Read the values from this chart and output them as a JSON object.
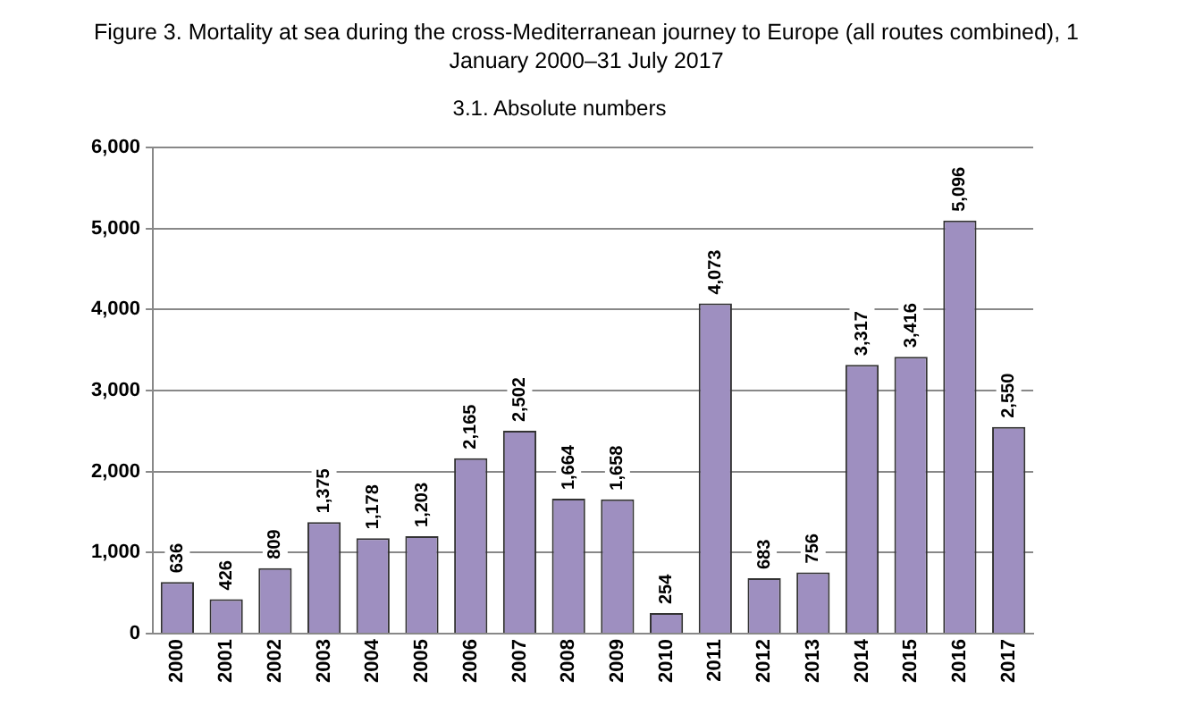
{
  "chart_data": {
    "type": "bar",
    "title": "Figure 3. Mortality at sea during the cross-Mediterranean journey to Europe (all routes combined), 1 January 2000–31 July 2017",
    "subtitle": "3.1. Absolute numbers",
    "categories": [
      "2000",
      "2001",
      "2002",
      "2003",
      "2004",
      "2005",
      "2006",
      "2007",
      "2008",
      "2009",
      "2010",
      "2011",
      "2012",
      "2013",
      "2014",
      "2015",
      "2016",
      "2017"
    ],
    "values": [
      636,
      426,
      809,
      1375,
      1178,
      1203,
      2165,
      2502,
      1664,
      1658,
      254,
      4073,
      683,
      756,
      3317,
      3416,
      5096,
      2550
    ],
    "value_labels": [
      "636",
      "426",
      "809",
      "1,375",
      "1,178",
      "1,203",
      "2,165",
      "2,502",
      "1,664",
      "1,658",
      "254",
      "4,073",
      "683",
      "756",
      "3,317",
      "3,416",
      "5,096",
      "2,550"
    ],
    "color": "#9e8fc0",
    "ylim": [
      0,
      6000
    ],
    "yticks": [
      0,
      {
        "value": 1000,
        "label": "1,000"
      },
      {
        "value": 2000,
        "label": "2,000"
      },
      {
        "value": 3000,
        "label": "3,000"
      },
      {
        "value": 4000,
        "label": "4,000"
      },
      {
        "value": 5000,
        "label": "5,000"
      },
      {
        "value": 6000,
        "label": "6,000"
      }
    ],
    "grid": "y"
  }
}
